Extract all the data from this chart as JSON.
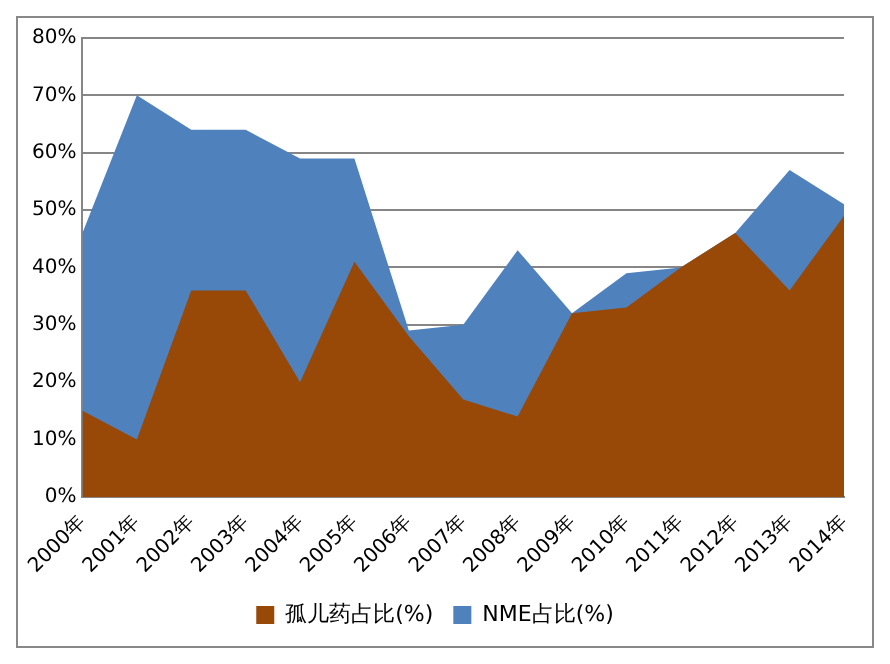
{
  "chart_data": {
    "type": "area",
    "categories": [
      "2000年",
      "2001年",
      "2002年",
      "2003年",
      "2004年",
      "2005年",
      "2006年",
      "2007年",
      "2008年",
      "2009年",
      "2010年",
      "2011年",
      "2012年",
      "2013年",
      "2014年"
    ],
    "series": [
      {
        "name": "NME占比(%)",
        "color": "#4f81bd",
        "values": [
          46,
          70,
          64,
          64,
          59,
          59,
          29,
          30,
          43,
          32,
          39,
          40,
          46,
          57,
          51
        ]
      },
      {
        "name": "孤儿药占比(%)",
        "color": "#984807",
        "values": [
          15,
          10,
          36,
          36,
          20,
          41,
          28,
          17,
          14,
          32,
          33,
          40,
          46,
          36,
          49
        ]
      }
    ],
    "ylim": [
      0,
      80
    ],
    "yticks": [
      {
        "value": 0,
        "label": "0%"
      },
      {
        "value": 10,
        "label": "10%"
      },
      {
        "value": 20,
        "label": "20%"
      },
      {
        "value": 30,
        "label": "30%"
      },
      {
        "value": 40,
        "label": "40%"
      },
      {
        "value": 50,
        "label": "50%"
      },
      {
        "value": 60,
        "label": "60%"
      },
      {
        "value": 70,
        "label": "70%"
      },
      {
        "value": 80,
        "label": "80%"
      }
    ],
    "grid": "y",
    "legend": "bottom"
  }
}
